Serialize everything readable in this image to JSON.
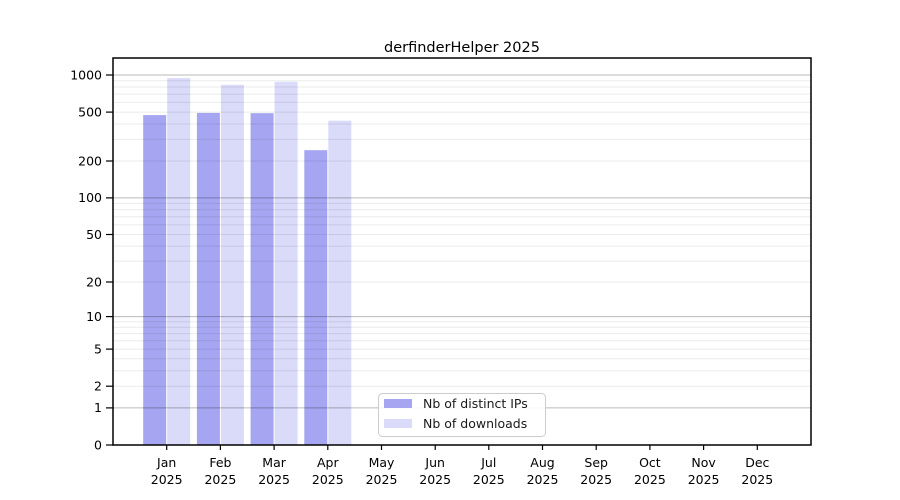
{
  "title": "derfinderHelper 2025",
  "legend": {
    "items": [
      {
        "label": "Nb of distinct IPs",
        "color": "#a5a5f1"
      },
      {
        "label": "Nb of downloads",
        "color": "#dadaf9"
      }
    ]
  },
  "chart_data": {
    "type": "bar",
    "title": "derfinderHelper 2025",
    "categories": [
      "Jan",
      "Feb",
      "Mar",
      "Apr",
      "May",
      "Jun",
      "Jul",
      "Aug",
      "Sep",
      "Oct",
      "Nov",
      "Dec"
    ],
    "category_sublabel": "2025",
    "series": [
      {
        "name": "Nb of distinct IPs",
        "color": "#a5a5f1",
        "values": [
          473,
          493,
          490,
          245,
          null,
          null,
          null,
          null,
          null,
          null,
          null,
          null
        ]
      },
      {
        "name": "Nb of downloads",
        "color": "#dadaf9",
        "values": [
          945,
          833,
          881,
          426,
          null,
          null,
          null,
          null,
          null,
          null,
          null,
          null
        ]
      }
    ],
    "yscale": "log1p",
    "yticks": [
      0,
      1,
      2,
      5,
      10,
      20,
      50,
      100,
      200,
      500,
      1000
    ],
    "ylim": [
      0,
      1375
    ],
    "grid": {
      "major_values": [
        1,
        10,
        100,
        1000
      ],
      "minor_values": [
        2,
        3,
        4,
        5,
        6,
        7,
        8,
        9,
        20,
        30,
        40,
        50,
        60,
        70,
        80,
        90,
        200,
        300,
        400,
        500,
        600,
        700,
        800,
        900
      ]
    },
    "legend_position": "inside-bottom-center",
    "xlabel": "",
    "ylabel": "",
    "bar_colors": {
      "distinct_ips": "#a5a5f1",
      "downloads": "#dadaf9"
    },
    "axis_color": "#000000",
    "grid_major_color": "#bababa",
    "grid_minor_color": "#ebebeb"
  }
}
